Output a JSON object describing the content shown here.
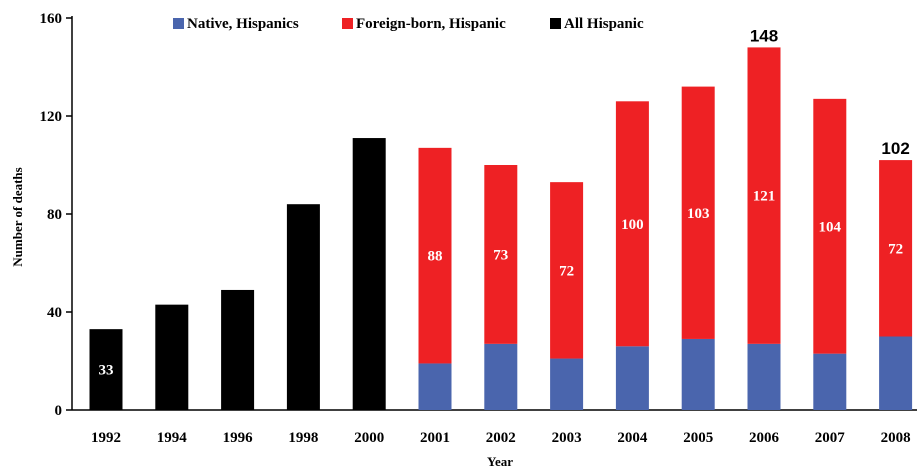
{
  "chart_data": {
    "type": "bar",
    "stacked": true,
    "xlabel": "Year",
    "ylabel": "Number of deaths",
    "ylim": [
      0,
      160
    ],
    "y_ticks": [
      "0",
      "40",
      "80",
      "120",
      "160"
    ],
    "legend_position": "top",
    "categories": [
      "1992",
      "1994",
      "1996",
      "1998",
      "2000",
      "2001",
      "2002",
      "2003",
      "2004",
      "2005",
      "2006",
      "2007",
      "2008"
    ],
    "series": [
      {
        "name": "Native, Hispanics",
        "color": "#4a65ad",
        "values": [
          null,
          null,
          null,
          null,
          null,
          19,
          27,
          21,
          26,
          29,
          27,
          23,
          30
        ]
      },
      {
        "name": "Foreign-born, Hispanic",
        "color": "#ee2124",
        "values": [
          null,
          null,
          null,
          null,
          null,
          88,
          73,
          72,
          100,
          103,
          121,
          104,
          72
        ]
      },
      {
        "name": "All Hispanic",
        "color": "#000000",
        "values": [
          33,
          43,
          49,
          84,
          111,
          null,
          null,
          null,
          null,
          null,
          null,
          null,
          null
        ]
      }
    ],
    "inner_labels": [
      {
        "category": "1992",
        "series": "All Hispanic",
        "text": "33"
      },
      {
        "category": "2001",
        "series": "Foreign-born, Hispanic",
        "text": "88"
      },
      {
        "category": "2002",
        "series": "Foreign-born, Hispanic",
        "text": "73"
      },
      {
        "category": "2003",
        "series": "Foreign-born, Hispanic",
        "text": "72"
      },
      {
        "category": "2004",
        "series": "Foreign-born, Hispanic",
        "text": "100"
      },
      {
        "category": "2005",
        "series": "Foreign-born, Hispanic",
        "text": "103"
      },
      {
        "category": "2006",
        "series": "Foreign-born, Hispanic",
        "text": "121"
      },
      {
        "category": "2007",
        "series": "Foreign-born, Hispanic",
        "text": "104"
      },
      {
        "category": "2008",
        "series": "Foreign-born, Hispanic",
        "text": "72"
      }
    ],
    "top_labels": [
      {
        "category": "2006",
        "text": "148"
      },
      {
        "category": "2008",
        "text": "102"
      }
    ]
  }
}
